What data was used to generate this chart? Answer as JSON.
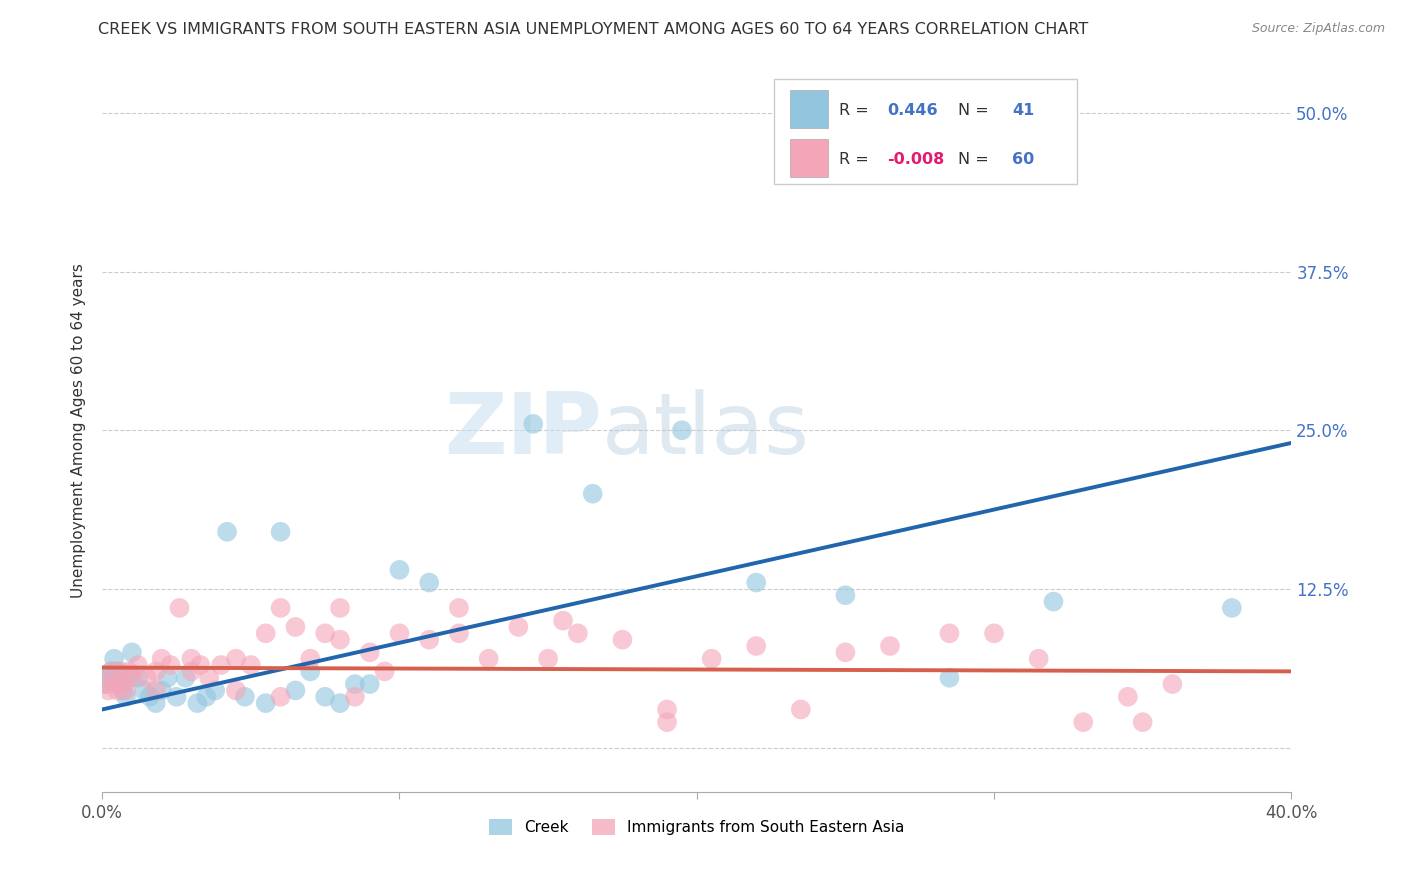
{
  "title": "CREEK VS IMMIGRANTS FROM SOUTH EASTERN ASIA UNEMPLOYMENT AMONG AGES 60 TO 64 YEARS CORRELATION CHART",
  "source": "Source: ZipAtlas.com",
  "ylabel": "Unemployment Among Ages 60 to 64 years",
  "xlim": [
    0.0,
    0.4
  ],
  "ylim": [
    -0.035,
    0.535
  ],
  "xticks": [
    0.0,
    0.1,
    0.2,
    0.3,
    0.4
  ],
  "xticklabels": [
    "0.0%",
    "",
    "",
    "",
    "40.0%"
  ],
  "yticks": [
    0.0,
    0.125,
    0.25,
    0.375,
    0.5
  ],
  "yticklabels": [
    "",
    "12.5%",
    "25.0%",
    "37.5%",
    "50.0%"
  ],
  "creek_R": 0.446,
  "creek_N": 41,
  "sea_R": -0.008,
  "sea_N": 60,
  "creek_color": "#92c5de",
  "creek_line_color": "#2166ac",
  "sea_color": "#f4a5b8",
  "sea_line_color": "#d6604d",
  "watermark_color": "#daeef8",
  "creek_x": [
    0.001,
    0.002,
    0.003,
    0.004,
    0.005,
    0.006,
    0.007,
    0.008,
    0.009,
    0.01,
    0.012,
    0.014,
    0.016,
    0.018,
    0.02,
    0.022,
    0.025,
    0.028,
    0.032,
    0.035,
    0.038,
    0.042,
    0.048,
    0.055,
    0.06,
    0.065,
    0.07,
    0.075,
    0.08,
    0.085,
    0.09,
    0.1,
    0.11,
    0.145,
    0.165,
    0.195,
    0.22,
    0.25,
    0.285,
    0.32,
    0.38
  ],
  "creek_y": [
    0.05,
    0.055,
    0.06,
    0.07,
    0.06,
    0.05,
    0.045,
    0.04,
    0.055,
    0.075,
    0.055,
    0.045,
    0.04,
    0.035,
    0.045,
    0.055,
    0.04,
    0.055,
    0.035,
    0.04,
    0.045,
    0.17,
    0.04,
    0.035,
    0.17,
    0.045,
    0.06,
    0.04,
    0.035,
    0.05,
    0.05,
    0.14,
    0.13,
    0.255,
    0.2,
    0.25,
    0.13,
    0.12,
    0.055,
    0.115,
    0.11
  ],
  "sea_x": [
    0.001,
    0.002,
    0.003,
    0.004,
    0.005,
    0.006,
    0.007,
    0.008,
    0.009,
    0.01,
    0.012,
    0.015,
    0.018,
    0.02,
    0.023,
    0.026,
    0.03,
    0.033,
    0.036,
    0.04,
    0.045,
    0.05,
    0.055,
    0.06,
    0.065,
    0.07,
    0.075,
    0.08,
    0.085,
    0.09,
    0.1,
    0.11,
    0.12,
    0.13,
    0.14,
    0.15,
    0.16,
    0.175,
    0.19,
    0.205,
    0.22,
    0.235,
    0.25,
    0.265,
    0.285,
    0.3,
    0.315,
    0.33,
    0.345,
    0.36,
    0.018,
    0.03,
    0.045,
    0.06,
    0.08,
    0.095,
    0.12,
    0.155,
    0.19,
    0.35
  ],
  "sea_y": [
    0.05,
    0.045,
    0.06,
    0.05,
    0.045,
    0.06,
    0.05,
    0.045,
    0.06,
    0.055,
    0.065,
    0.055,
    0.045,
    0.07,
    0.065,
    0.11,
    0.07,
    0.065,
    0.055,
    0.065,
    0.07,
    0.065,
    0.09,
    0.04,
    0.095,
    0.07,
    0.09,
    0.085,
    0.04,
    0.075,
    0.09,
    0.085,
    0.09,
    0.07,
    0.095,
    0.07,
    0.09,
    0.085,
    0.03,
    0.07,
    0.08,
    0.03,
    0.075,
    0.08,
    0.09,
    0.09,
    0.07,
    0.02,
    0.04,
    0.05,
    0.06,
    0.06,
    0.045,
    0.11,
    0.11,
    0.06,
    0.11,
    0.1,
    0.02,
    0.02
  ],
  "creek_trend_x": [
    0.0,
    0.4
  ],
  "creek_trend_y": [
    0.03,
    0.24
  ],
  "sea_trend_x": [
    0.0,
    0.4
  ],
  "sea_trend_y": [
    0.063,
    0.06
  ]
}
